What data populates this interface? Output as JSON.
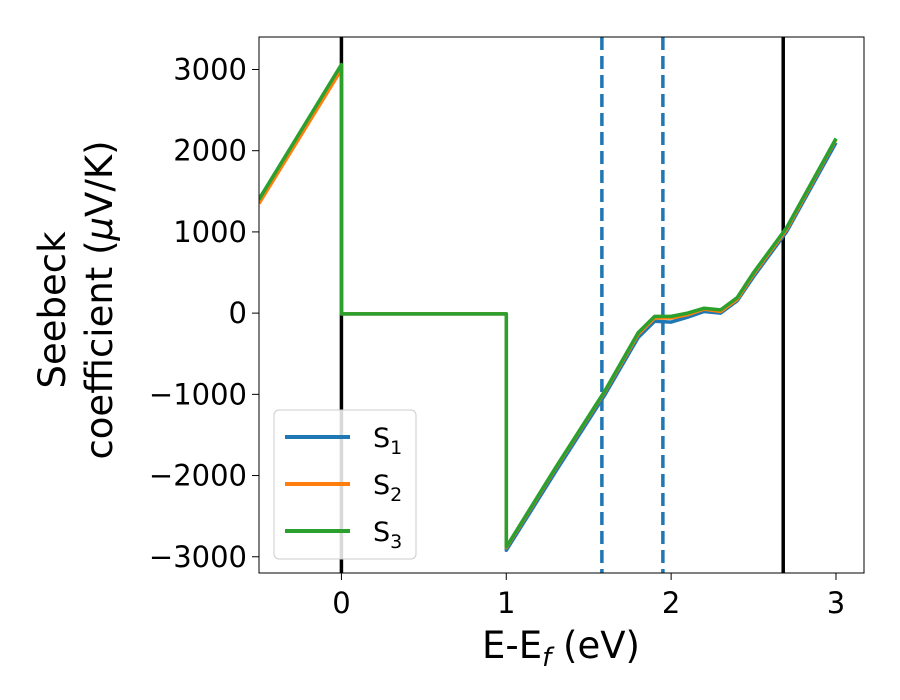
{
  "chart_data": {
    "type": "line",
    "xlabel": "E-E",
    "xlabel_sub": "f",
    "xlabel_unit": " (eV)",
    "ylabel_line1": "Seebeck",
    "ylabel_line2": "coefficient  (",
    "ylabel_mu": "μ",
    "ylabel_unit_tail": "V/K)",
    "xlim": [
      -0.5,
      3.17
    ],
    "ylim": [
      -3200,
      3400
    ],
    "x_ticks": [
      0,
      1,
      2,
      3
    ],
    "x_tick_labels": [
      "0",
      "1",
      "2",
      "3"
    ],
    "y_ticks": [
      -3000,
      -2000,
      -1000,
      0,
      1000,
      2000,
      3000
    ],
    "y_tick_labels": [
      "−3000",
      "−2000",
      "−1000",
      "0",
      "1000",
      "2000",
      "3000"
    ],
    "grid": false,
    "legend_position": "lower-left",
    "series": [
      {
        "name": "S",
        "sub": "1",
        "color": "#1f77b4",
        "x": [
          -0.5,
          0.0,
          0.0,
          1.0,
          1.0,
          1.3,
          1.6,
          1.8,
          1.9,
          2.0,
          2.1,
          2.2,
          2.3,
          2.4,
          2.5,
          2.7,
          3.0
        ],
        "y": [
          1400,
          3050,
          -10,
          -10,
          -2920,
          -1950,
          -1000,
          -300,
          -100,
          -110,
          -50,
          20,
          0,
          150,
          450,
          1000,
          2100
        ]
      },
      {
        "name": "S",
        "sub": "2",
        "color": "#ff7f0e",
        "x": [
          -0.5,
          0.0,
          0.0,
          1.0,
          1.0,
          1.3,
          1.6,
          1.8,
          1.9,
          2.0,
          2.1,
          2.2,
          2.3,
          2.4,
          2.5,
          2.7,
          3.0
        ],
        "y": [
          1350,
          3000,
          -10,
          -10,
          -2890,
          -1910,
          -960,
          -260,
          -60,
          -60,
          -20,
          50,
          20,
          170,
          480,
          1030,
          2140
        ]
      },
      {
        "name": "S",
        "sub": "3",
        "color": "#2ca02c",
        "x": [
          -0.5,
          0.0,
          0.0,
          1.0,
          1.0,
          1.3,
          1.6,
          1.8,
          1.9,
          2.0,
          2.1,
          2.2,
          2.3,
          2.4,
          2.5,
          2.7,
          3.0
        ],
        "y": [
          1400,
          3060,
          -10,
          -10,
          -2880,
          -1900,
          -950,
          -240,
          -40,
          -40,
          0,
          60,
          40,
          190,
          500,
          1050,
          2150
        ]
      }
    ],
    "vlines": [
      {
        "x": 0.0,
        "color": "#000000",
        "style": "solid"
      },
      {
        "x": 2.68,
        "color": "#000000",
        "style": "solid"
      },
      {
        "x": 1.58,
        "color": "#1f77b4",
        "style": "dashed"
      },
      {
        "x": 1.95,
        "color": "#1f77b4",
        "style": "dashed"
      }
    ]
  }
}
